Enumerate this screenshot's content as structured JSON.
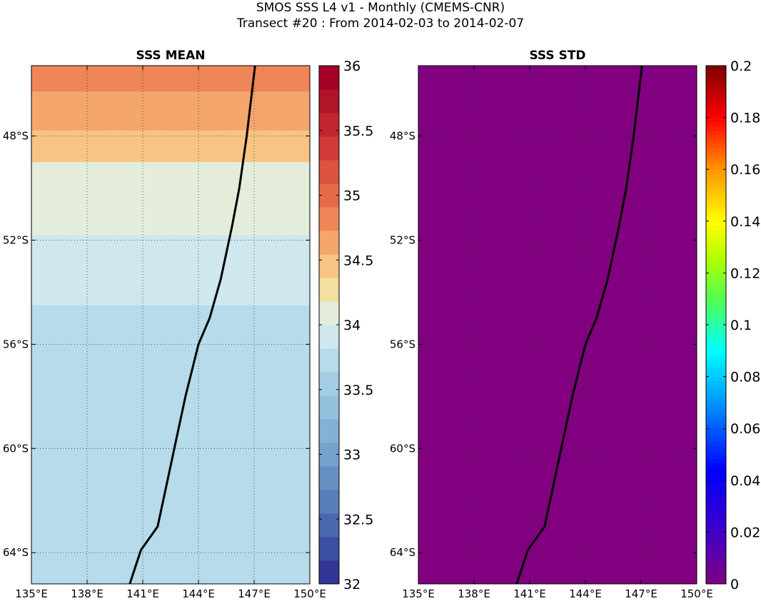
{
  "figure": {
    "title_line1": "SMOS SSS L4 v1 - Monthly (CMEMS-CNR)",
    "title_line2": "Transect #20 : From 2014-02-03 to 2014-02-07"
  },
  "chart_data": [
    {
      "type": "map",
      "title": "SSS MEAN",
      "x_ticks": [
        "135°E",
        "138°E",
        "141°E",
        "144°E",
        "147°E",
        "150°E"
      ],
      "x_tick_values": [
        135,
        138,
        141,
        144,
        147,
        150
      ],
      "y_ticks": [
        "48°S",
        "52°S",
        "56°S",
        "60°S",
        "64°S"
      ],
      "y_tick_values": [
        -48,
        -52,
        -56,
        -60,
        -64
      ],
      "lon_range": [
        135,
        150
      ],
      "lat_range": [
        -65.2,
        -45.3
      ],
      "grid": true,
      "colorbar": {
        "colormap": "RdYlBu_r discrete",
        "range": [
          32,
          36
        ],
        "levels": 22,
        "tick_labels": [
          "36",
          "35.5",
          "35",
          "34.5",
          "34",
          "33.5",
          "33",
          "32.5",
          "32"
        ],
        "tick_values": [
          36,
          35.5,
          35,
          34.5,
          34,
          33.5,
          33,
          32.5,
          32
        ]
      },
      "field_bands": [
        {
          "lat_from": -45.3,
          "lat_to": -46.3,
          "value": 34.9
        },
        {
          "lat_from": -46.3,
          "lat_to": -47.8,
          "value": 34.7
        },
        {
          "lat_from": -47.8,
          "lat_to": -49.0,
          "value": 34.5
        },
        {
          "lat_from": -49.0,
          "lat_to": -51.8,
          "value": 34.1
        },
        {
          "lat_from": -51.8,
          "lat_to": -54.5,
          "value": 33.9
        },
        {
          "lat_from": -54.5,
          "lat_to": -65.2,
          "value": 33.7
        }
      ],
      "transect_color": "#000000"
    },
    {
      "type": "map",
      "title": "SSS STD",
      "x_ticks": [
        "135°E",
        "138°E",
        "141°E",
        "144°E",
        "147°E",
        "150°E"
      ],
      "x_tick_values": [
        135,
        138,
        141,
        144,
        147,
        150
      ],
      "y_ticks": [
        "48°S",
        "52°S",
        "56°S",
        "60°S",
        "64°S"
      ],
      "y_tick_values": [
        -48,
        -52,
        -56,
        -60,
        -64
      ],
      "lon_range": [
        135,
        150
      ],
      "lat_range": [
        -65.2,
        -45.3
      ],
      "grid": true,
      "field_value": 0,
      "colorbar": {
        "colormap": "jet-like",
        "range": [
          0,
          0.2
        ],
        "tick_labels": [
          "0.2",
          "0.18",
          "0.16",
          "0.14",
          "0.12",
          "0.1",
          "0.08",
          "0.06",
          "0.04",
          "0.02",
          "0"
        ],
        "tick_values": [
          0.2,
          0.18,
          0.16,
          0.14,
          0.12,
          0.1,
          0.08,
          0.06,
          0.04,
          0.02,
          0
        ]
      },
      "transect_color": "#000000"
    }
  ],
  "transect": {
    "lon": [
      147.05,
      146.6,
      146.2,
      145.8,
      145.2,
      144.6,
      144.0,
      143.3,
      142.7,
      142.1,
      141.8,
      140.9,
      140.3
    ],
    "lat": [
      -45.3,
      -48.0,
      -50.0,
      -51.5,
      -53.5,
      -55.0,
      -56.0,
      -58.0,
      -60.0,
      -62.0,
      -63.0,
      -63.9,
      -65.2
    ]
  }
}
